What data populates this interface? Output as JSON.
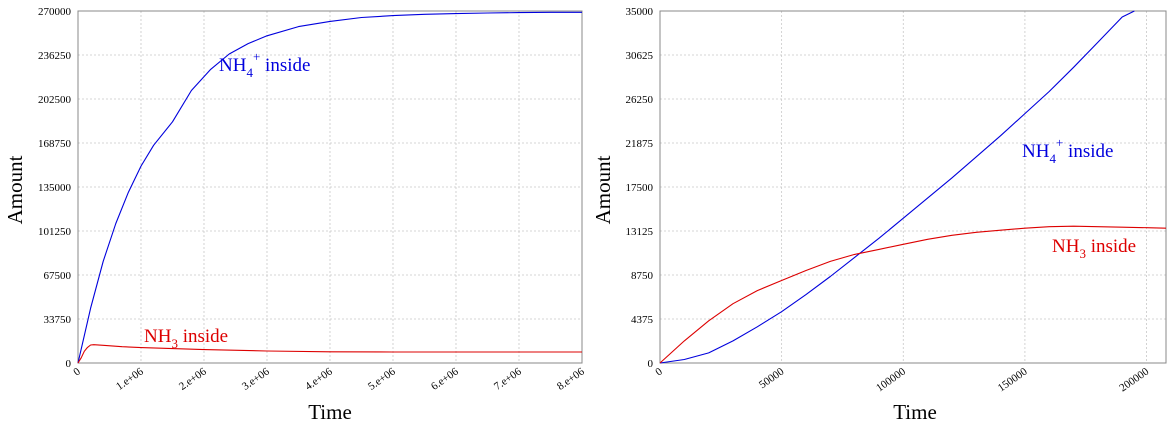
{
  "chart_data": [
    {
      "type": "line",
      "title": "",
      "xlabel": "Time",
      "ylabel": "Amount",
      "xlim": [
        0,
        8000000
      ],
      "ylim": [
        0,
        270000
      ],
      "grid": true,
      "xticks": [
        0,
        1000000,
        2000000,
        3000000,
        4000000,
        5000000,
        6000000,
        7000000,
        8000000
      ],
      "xtick_labels": [
        "0",
        "1.e+06",
        "2.e+06",
        "3.e+06",
        "4.e+06",
        "5.e+06",
        "6.e+06",
        "7.e+06",
        "8.e+06"
      ],
      "yticks": [
        0,
        33750,
        67500,
        101250,
        135000,
        168750,
        202500,
        236250,
        270000
      ],
      "ytick_labels": [
        "0",
        "33750",
        "67500",
        "101250",
        "135000",
        "168750",
        "202500",
        "236250",
        "270000"
      ],
      "series": [
        {
          "name": "NH4+ inside",
          "label_main": "NH",
          "label_sub": "4",
          "label_sup": "+",
          "label_tail": " inside",
          "color": "#0000dd",
          "x": [
            0,
            200000,
            400000,
            600000,
            800000,
            1000000,
            1200000,
            1500000,
            1800000,
            2100000,
            2400000,
            2700000,
            3000000,
            3500000,
            4000000,
            4500000,
            5000000,
            5500000,
            6000000,
            6500000,
            7000000,
            7500000,
            8000000
          ],
          "y": [
            0,
            42000,
            78000,
            107000,
            131000,
            151000,
            167000,
            185000,
            209000,
            225000,
            237000,
            245000,
            251000,
            258000,
            262000,
            265000,
            266500,
            267500,
            268000,
            268500,
            268800,
            269000,
            269000
          ]
        },
        {
          "name": "NH3 inside",
          "label_main": "NH",
          "label_sub": "3",
          "label_sup": "",
          "label_tail": " inside",
          "color": "#dd0000",
          "x": [
            0,
            50000,
            100000,
            150000,
            200000,
            250000,
            400000,
            700000,
            1000000,
            2000000,
            3000000,
            4000000,
            5000000,
            6000000,
            7000000,
            8000000
          ],
          "y": [
            0,
            4000,
            9000,
            12000,
            13800,
            14000,
            13600,
            12500,
            11800,
            10300,
            9200,
            8600,
            8400,
            8400,
            8400,
            8400
          ]
        }
      ]
    },
    {
      "type": "line",
      "title": "",
      "xlabel": "Time",
      "ylabel": "Amount",
      "xlim": [
        0,
        208000
      ],
      "ylim": [
        0,
        35000
      ],
      "grid": true,
      "xticks": [
        0,
        50000,
        100000,
        150000,
        200000
      ],
      "xtick_labels": [
        "0",
        "50000",
        "100000",
        "150000",
        "200000"
      ],
      "yticks": [
        0,
        4375,
        8750,
        13125,
        17500,
        21875,
        26250,
        30625,
        35000
      ],
      "ytick_labels": [
        "0",
        "4375",
        "8750",
        "13125",
        "17500",
        "21875",
        "26250",
        "30625",
        "35000"
      ],
      "series": [
        {
          "name": "NH4+ inside",
          "label_main": "NH",
          "label_sub": "4",
          "label_sup": "+",
          "label_tail": " inside",
          "color": "#0000dd",
          "x": [
            0,
            10000,
            20000,
            30000,
            40000,
            50000,
            60000,
            70000,
            80000,
            90000,
            100000,
            110000,
            120000,
            130000,
            140000,
            150000,
            160000,
            170000,
            180000,
            190000,
            195000
          ],
          "y": [
            0,
            350,
            1000,
            2200,
            3600,
            5100,
            6800,
            8600,
            10500,
            12400,
            14400,
            16400,
            18400,
            20500,
            22600,
            24800,
            27000,
            29400,
            31900,
            34400,
            35000
          ]
        },
        {
          "name": "NH3 inside",
          "label_main": "NH",
          "label_sub": "3",
          "label_sup": "",
          "label_tail": " inside",
          "color": "#dd0000",
          "x": [
            0,
            10000,
            20000,
            30000,
            40000,
            50000,
            60000,
            70000,
            80000,
            90000,
            100000,
            110000,
            120000,
            130000,
            140000,
            150000,
            160000,
            170000,
            180000,
            190000,
            200000,
            208000
          ],
          "y": [
            0,
            2200,
            4200,
            5900,
            7200,
            8200,
            9200,
            10100,
            10800,
            11300,
            11800,
            12300,
            12700,
            13000,
            13200,
            13400,
            13550,
            13600,
            13550,
            13500,
            13450,
            13400
          ]
        }
      ]
    }
  ]
}
